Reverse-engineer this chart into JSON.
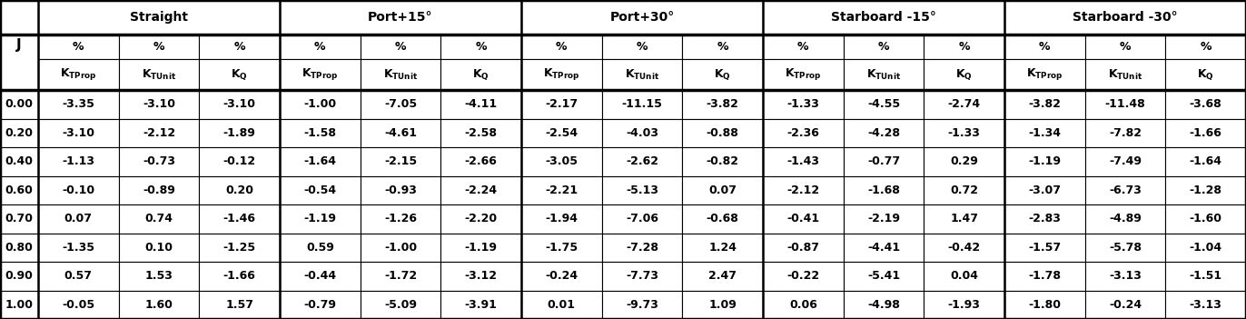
{
  "col_groups": [
    {
      "label": "Straight",
      "span": 3
    },
    {
      "label": "Port+15°",
      "span": 3
    },
    {
      "label": "Port+30°",
      "span": 3
    },
    {
      "label": "Starboard -15°",
      "span": 3
    },
    {
      "label": "Starboard -30°",
      "span": 3
    }
  ],
  "J_values": [
    "0.00",
    "0.20",
    "0.40",
    "0.60",
    "0.70",
    "0.80",
    "0.90",
    "1.00"
  ],
  "data": [
    [
      "-3.35",
      "-3.10",
      "-3.10",
      "-1.00",
      "-7.05",
      "-4.11",
      "-2.17",
      "-11.15",
      "-3.82",
      "-1.33",
      "-4.55",
      "-2.74",
      "-3.82",
      "-11.48",
      "-3.68"
    ],
    [
      "-3.10",
      "-2.12",
      "-1.89",
      "-1.58",
      "-4.61",
      "-2.58",
      "-2.54",
      "-4.03",
      "-0.88",
      "-2.36",
      "-4.28",
      "-1.33",
      "-1.34",
      "-7.82",
      "-1.66"
    ],
    [
      "-1.13",
      "-0.73",
      "-0.12",
      "-1.64",
      "-2.15",
      "-2.66",
      "-3.05",
      "-2.62",
      "-0.82",
      "-1.43",
      "-0.77",
      "0.29",
      "-1.19",
      "-7.49",
      "-1.64"
    ],
    [
      "-0.10",
      "-0.89",
      "0.20",
      "-0.54",
      "-0.93",
      "-2.24",
      "-2.21",
      "-5.13",
      "0.07",
      "-2.12",
      "-1.68",
      "0.72",
      "-3.07",
      "-6.73",
      "-1.28"
    ],
    [
      "0.07",
      "0.74",
      "-1.46",
      "-1.19",
      "-1.26",
      "-2.20",
      "-1.94",
      "-7.06",
      "-0.68",
      "-0.41",
      "-2.19",
      "1.47",
      "-2.83",
      "-4.89",
      "-1.60"
    ],
    [
      "-1.35",
      "0.10",
      "-1.25",
      "0.59",
      "-1.00",
      "-1.19",
      "-1.75",
      "-7.28",
      "1.24",
      "-0.87",
      "-4.41",
      "-0.42",
      "-1.57",
      "-5.78",
      "-1.04"
    ],
    [
      "0.57",
      "1.53",
      "-1.66",
      "-0.44",
      "-1.72",
      "-3.12",
      "-0.24",
      "-7.73",
      "2.47",
      "-0.22",
      "-5.41",
      "0.04",
      "-1.78",
      "-3.13",
      "-1.51"
    ],
    [
      "-0.05",
      "1.60",
      "1.57",
      "-0.79",
      "-5.09",
      "-3.91",
      "0.01",
      "-9.73",
      "1.09",
      "0.06",
      "-4.98",
      "-1.93",
      "-1.80",
      "-0.24",
      "-3.13"
    ]
  ],
  "bg_header": "#ffffff",
  "bg_white": "#ffffff",
  "text_color": "#000000",
  "border_color": "#000000",
  "font_size_group": 10,
  "font_size_pct": 9,
  "font_size_k": 9,
  "font_size_data": 9,
  "font_size_j": 10
}
